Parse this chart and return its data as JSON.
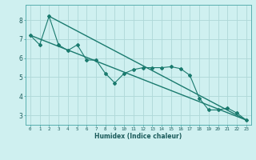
{
  "xlabel": "Humidex (Indice chaleur)",
  "bg_color": "#cff0f0",
  "grid_color": "#aed8d8",
  "line_color": "#1a7a6e",
  "xlim": [
    -0.5,
    23.5
  ],
  "ylim": [
    2.5,
    8.8
  ],
  "xticks": [
    0,
    1,
    2,
    3,
    4,
    5,
    6,
    7,
    8,
    9,
    10,
    11,
    12,
    13,
    14,
    15,
    16,
    17,
    18,
    19,
    20,
    21,
    22,
    23
  ],
  "yticks": [
    3,
    4,
    5,
    6,
    7,
    8
  ],
  "series1_x": [
    0,
    1,
    2,
    3,
    4,
    5,
    6,
    7,
    8,
    9,
    10,
    11,
    12,
    13,
    14,
    15,
    16,
    17,
    18,
    19,
    20,
    21,
    22,
    23
  ],
  "series1_y": [
    7.2,
    6.7,
    8.2,
    6.7,
    6.4,
    6.7,
    5.9,
    5.9,
    5.2,
    4.7,
    5.2,
    5.4,
    5.5,
    5.5,
    5.5,
    5.55,
    5.45,
    5.1,
    3.9,
    3.28,
    3.28,
    3.38,
    3.12,
    2.75
  ],
  "series2_x": [
    0,
    23
  ],
  "series2_y": [
    7.2,
    2.75
  ],
  "series3_x": [
    2,
    23
  ],
  "series3_y": [
    8.2,
    2.75
  ]
}
